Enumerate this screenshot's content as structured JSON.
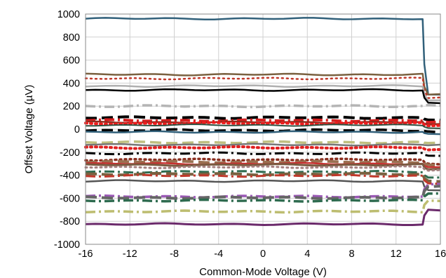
{
  "chart_data": {
    "type": "line",
    "title": "",
    "xlabel": "Common-Mode Voltage (V)",
    "ylabel": "Offset Voltage (µV)",
    "xlim": [
      -16,
      16
    ],
    "ylim": [
      -1000,
      1000
    ],
    "xticks": [
      -16,
      -12,
      -8,
      -4,
      0,
      4,
      8,
      12,
      16
    ],
    "yticks": [
      1000,
      800,
      600,
      400,
      200,
      0,
      -200,
      -400,
      -600,
      -800,
      -1000
    ],
    "grid": "vertical-and-horizontal",
    "legend": "none",
    "x_knee": 14.4,
    "series": [
      {
        "color": "#31607a",
        "dash": "solid",
        "width": 2.5,
        "flat": 960,
        "end": 300
      },
      {
        "color": "#7a6140",
        "dash": "solid",
        "width": 2.5,
        "flat": 475,
        "end": 300
      },
      {
        "color": "#c0392b",
        "dash": "dot",
        "width": 2.5,
        "flat": 440,
        "end": 270
      },
      {
        "color": "#b0b0b0",
        "dash": "solid",
        "width": 2.5,
        "flat": 375,
        "end": 250
      },
      {
        "color": "#000000",
        "dash": "solid",
        "width": 2.5,
        "flat": 340,
        "end": 230
      },
      {
        "color": "#b5b5b5",
        "dash": "dashdot",
        "width": 3.5,
        "flat": 200,
        "end": 210
      },
      {
        "color": "#000000",
        "dash": "longdash",
        "width": 4,
        "flat": 100,
        "end": 80
      },
      {
        "color": "#d62020",
        "dash": "dashdot",
        "width": 4,
        "flat": 75,
        "end": 60
      },
      {
        "color": "#8b2e1f",
        "dash": "solid",
        "width": 2.5,
        "flat": 60,
        "end": 40
      },
      {
        "color": "#ee1c1c",
        "dash": "dot",
        "width": 4,
        "flat": 50,
        "end": 30
      },
      {
        "color": "#2e4f3f",
        "dash": "solid",
        "width": 2,
        "flat": 35,
        "end": 10
      },
      {
        "color": "#000000",
        "dash": "longdash",
        "width": 3.5,
        "flat": -10,
        "end": -20
      },
      {
        "color": "#31607a",
        "dash": "solid",
        "width": 2.5,
        "flat": -25,
        "end": -40
      },
      {
        "color": "#bfbf80",
        "dash": "longdash",
        "width": 3.5,
        "flat": -115,
        "end": -120
      },
      {
        "color": "#777777",
        "dash": "solid",
        "width": 2.5,
        "flat": -135,
        "end": -140
      },
      {
        "color": "#e02020",
        "dash": "dot",
        "width": 4,
        "flat": -160,
        "end": -180
      },
      {
        "color": "#000000",
        "dash": "dashdot",
        "width": 3,
        "flat": -210,
        "end": -230
      },
      {
        "color": "#8b2e1f",
        "dash": "dot",
        "width": 3.5,
        "flat": -265,
        "end": -300
      },
      {
        "color": "#9a6f50",
        "dash": "longdash",
        "width": 4,
        "flat": -285,
        "end": -310
      },
      {
        "color": "#c83030",
        "dash": "solid",
        "width": 2.5,
        "flat": -300,
        "end": -330
      },
      {
        "color": "#7a5a40",
        "dash": "solid",
        "width": 3,
        "flat": -310,
        "end": -350
      },
      {
        "color": "#a58080",
        "dash": "dot",
        "width": 3,
        "flat": -330,
        "end": -360
      },
      {
        "color": "#2e6b4f",
        "dash": "dashdot",
        "width": 3,
        "flat": -370,
        "end": -420
      },
      {
        "color": "#7a6140",
        "dash": "longdash",
        "width": 4,
        "flat": -390,
        "end": -450
      },
      {
        "color": "#c0392b",
        "dash": "dashdot",
        "width": 3,
        "flat": -405,
        "end": -470
      },
      {
        "color": "#555555",
        "dash": "solid",
        "width": 2.5,
        "flat": -450,
        "end": -530
      },
      {
        "color": "#9b59b6",
        "dash": "dashdot",
        "width": 3.5,
        "flat": -585,
        "end": -480
      },
      {
        "color": "#666666",
        "dash": "longdash",
        "width": 4,
        "flat": -595,
        "end": -500
      },
      {
        "color": "#2e6b4f",
        "dash": "dashdot",
        "width": 3.5,
        "flat": -620,
        "end": -560
      },
      {
        "color": "#bdbd70",
        "dash": "dashdot",
        "width": 3.5,
        "flat": -715,
        "end": -620
      },
      {
        "color": "#6b2a6b",
        "dash": "solid",
        "width": 3,
        "flat": -825,
        "end": -700
      }
    ]
  }
}
